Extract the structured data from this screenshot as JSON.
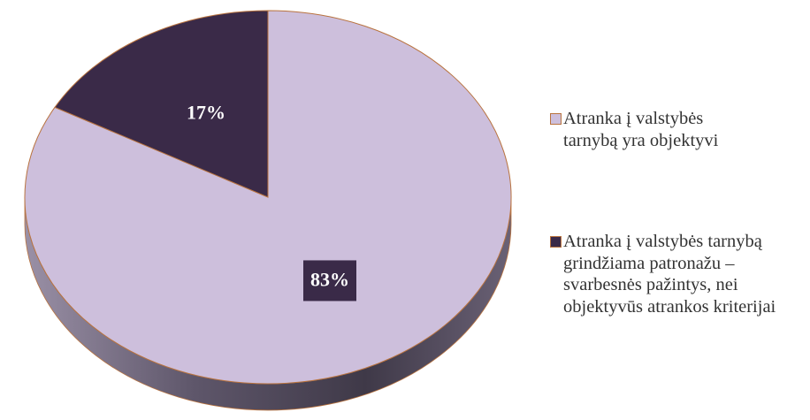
{
  "chart_data": {
    "type": "pie",
    "categories": [
      "Atranka į valstybės tarnybą yra objektyvi",
      "Atranka į valstybės tarnybą grindžiama patronažu – svarbesnės pažintys, nei objektyvūs atrankos kriterijai"
    ],
    "values": [
      83,
      17
    ],
    "value_labels": [
      "83%",
      "17%"
    ],
    "colors": [
      "#cdbfdc",
      "#3a2a48"
    ],
    "legend": "right"
  }
}
